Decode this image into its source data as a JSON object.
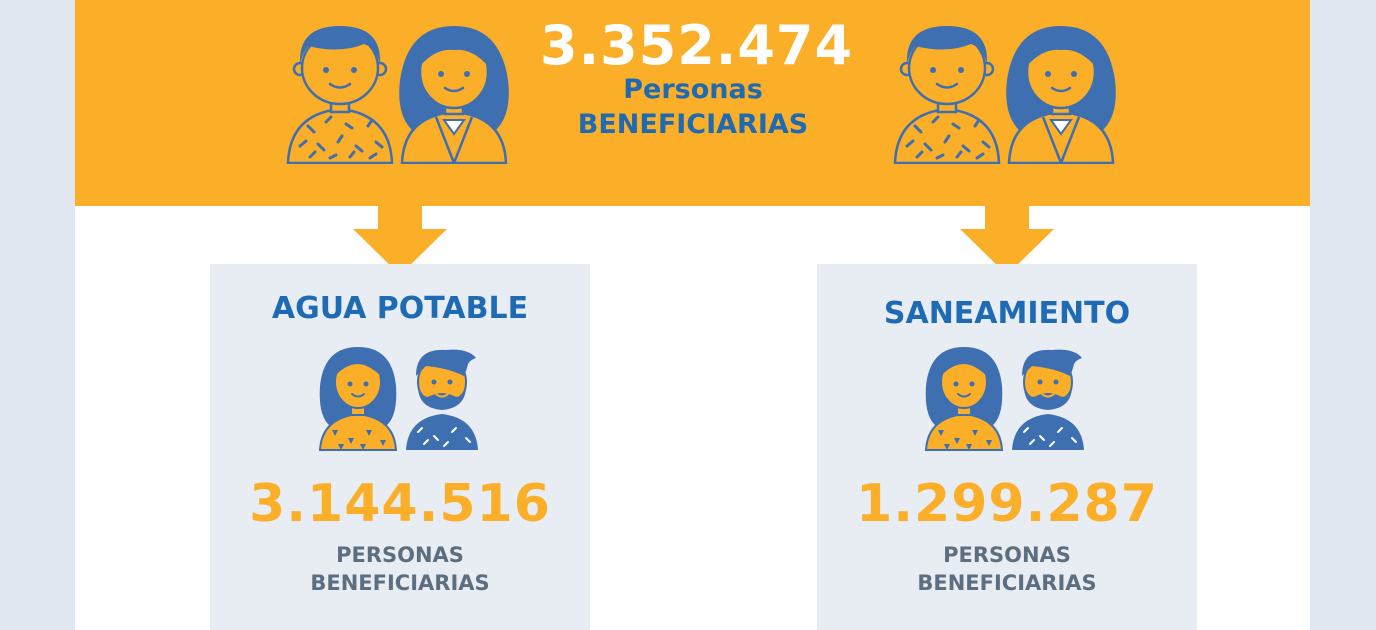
{
  "header": {
    "total_value": "3.352.474",
    "total_line1": "Personas",
    "total_line2": "BENEFICIARIAS"
  },
  "cards": [
    {
      "title": "AGUA POTABLE",
      "value": "3.144.516",
      "label_line1": "PERSONAS",
      "label_line2": "BENEFICIARIAS"
    },
    {
      "title": "SANEAMIENTO",
      "value": "1.299.287",
      "label_line1": "PERSONAS",
      "label_line2": "BENEFICIARIAS"
    }
  ],
  "icons": [
    "man-icon",
    "woman-icon",
    "down-arrow-icon"
  ],
  "colors": {
    "background": "#e1e7ee",
    "banner": "#fbae28",
    "brand_blue": "#1e6bb3",
    "illustration_blue": "#3e6fb0",
    "card": "#e8ecf3",
    "label_gray": "#5c6e7f"
  }
}
